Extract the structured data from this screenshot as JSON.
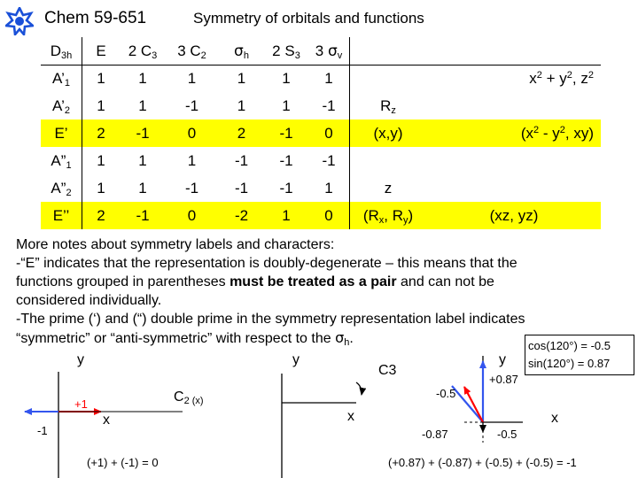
{
  "header": {
    "course": "Chem 59-651",
    "title": "Symmetry of orbitals and functions"
  },
  "character_table": {
    "point_group": {
      "base": "D",
      "sub": "3h"
    },
    "columns": [
      {
        "coef": "",
        "op": "E",
        "sub": ""
      },
      {
        "coef": "2",
        "op": "C",
        "sub": "3"
      },
      {
        "coef": "3",
        "op": "C",
        "sub": "2"
      },
      {
        "coef": "",
        "op": "σ",
        "sub": "h"
      },
      {
        "coef": "2",
        "op": "S",
        "sub": "3"
      },
      {
        "coef": "3",
        "op": "σ",
        "sub": "v"
      }
    ],
    "rows": [
      {
        "base": "A",
        "prime": "’",
        "sub": "1",
        "chars": [
          "1",
          "1",
          "1",
          "1",
          "1",
          "1"
        ],
        "linear": "",
        "quadratic": "x2 + y2, z2",
        "highlight": false
      },
      {
        "base": "A",
        "prime": "’",
        "sub": "2",
        "chars": [
          "1",
          "1",
          "-1",
          "1",
          "1",
          "-1"
        ],
        "linear": "Rz",
        "quadratic": "",
        "highlight": false
      },
      {
        "base": "E",
        "prime": "’",
        "sub": "",
        "chars": [
          "2",
          "-1",
          "0",
          "2",
          "-1",
          "0"
        ],
        "linear": "(x,y)",
        "quadratic": "(x2 - y2, xy)",
        "highlight": true
      },
      {
        "base": "A",
        "prime": "”",
        "sub": "1",
        "chars": [
          "1",
          "1",
          "1",
          "-1",
          "-1",
          "-1"
        ],
        "linear": "",
        "quadratic": "",
        "highlight": false
      },
      {
        "base": "A",
        "prime": "”",
        "sub": "2",
        "chars": [
          "1",
          "1",
          "-1",
          "-1",
          "-1",
          "1"
        ],
        "linear": "z",
        "quadratic": "",
        "highlight": false
      },
      {
        "base": "E",
        "prime": "’’",
        "sub": "",
        "chars": [
          "2",
          "-1",
          "0",
          "-2",
          "1",
          "0"
        ],
        "linear": "(Rx, Ry)",
        "quadratic": "(xz, yz)",
        "highlight": true
      }
    ],
    "highlight_color": "#ffff00"
  },
  "notes": {
    "l1": "More notes about symmetry labels and characters:",
    "l2": "-“E” indicates that the representation is doubly-degenerate – this means that the",
    "l3a": "functions grouped in parentheses ",
    "l3b": "must be treated as a pair",
    "l3c": " and can not be",
    "l4": "considered individually.",
    "l5": "-The prime (‘) and (“) double prime in the symmetry representation label indicates",
    "l6a": "“symmetric” or “anti-symmetric” with respect to the ",
    "l6b": "σ",
    "l6c": "h",
    "l6d": "."
  },
  "trig": {
    "cos": "cos(120°) = -0.5",
    "sin": "sin(120°) = 0.87"
  },
  "diagram1": {
    "y": "y",
    "x": "x",
    "op_base": "C",
    "op_sub": "2 (x)",
    "plus": "+1",
    "minus": "-1",
    "sum": "(+1) + (-1) = 0"
  },
  "diagram2": {
    "y": "y",
    "x": "x",
    "op": "C3"
  },
  "diagram3": {
    "y": "y",
    "x": "x",
    "p087": "+0.87",
    "m05top": "-0.5",
    "m087": "-0.87",
    "m05bot": "-0.5",
    "sum": "(+0.87) + (-0.87) + (-0.5) + (-0.5) = -1"
  },
  "colors": {
    "red_arrow": "#ff0000",
    "blue_arrow": "#3355ee",
    "logo": "#1a50d8"
  }
}
